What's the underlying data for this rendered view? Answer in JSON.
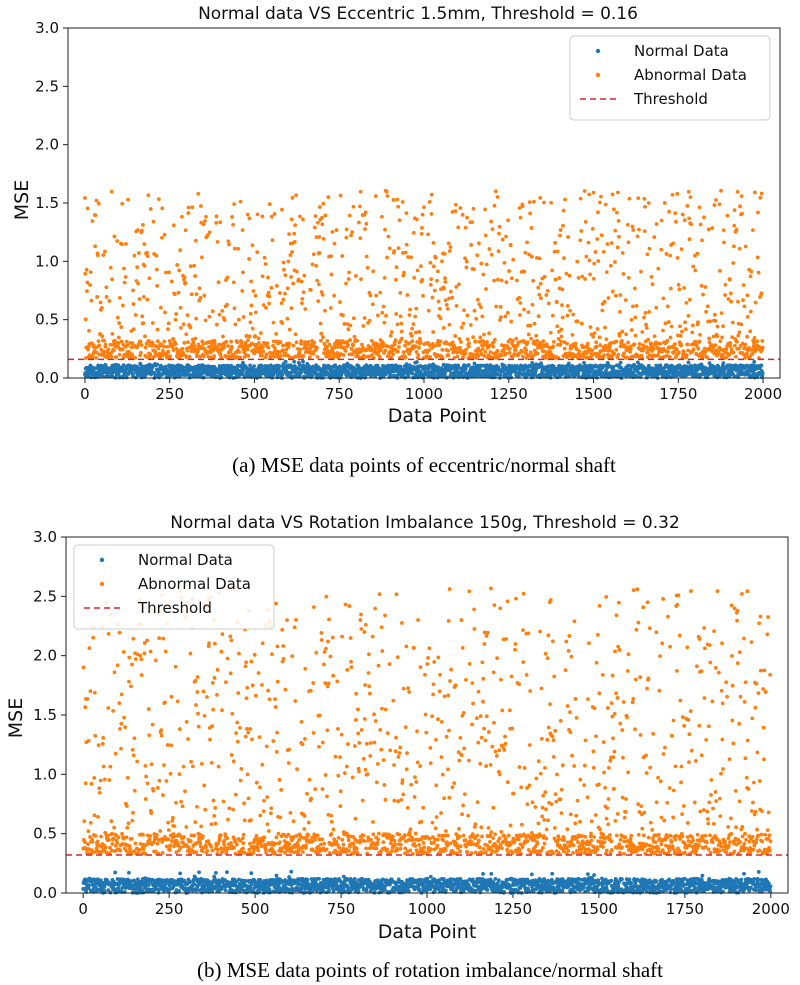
{
  "chart_data": [
    {
      "type": "scatter",
      "panel": "a",
      "title": "Normal data VS Eccentric 1.5mm, Threshold = 0.16",
      "xlabel": "Data Point",
      "ylabel": "MSE",
      "xlim": [
        -50,
        2050
      ],
      "ylim": [
        0,
        3.0
      ],
      "xticks": [
        0,
        250,
        500,
        750,
        1000,
        1250,
        1500,
        1750,
        2000
      ],
      "yticks": [
        0.0,
        0.5,
        1.0,
        1.5,
        2.0,
        2.5,
        3.0
      ],
      "ytick_labels": [
        "0.0",
        "0.5",
        "1.0",
        "1.5",
        "2.0",
        "2.5",
        "3.0"
      ],
      "threshold": 0.16,
      "legend_position": "top-right",
      "n_points": 2000,
      "series": [
        {
          "name": "Normal Data",
          "color": "#1f77b4",
          "range": [
            0.0,
            0.14
          ],
          "typical_max": 0.11
        },
        {
          "name": "Abnormal Data",
          "color": "#ff7f0e",
          "range": [
            0.17,
            1.61
          ],
          "dense_band": [
            0.17,
            0.32
          ]
        },
        {
          "name": "Threshold",
          "color": "#d62728",
          "style": "dashed",
          "value": 0.16
        }
      ],
      "caption": "(a) MSE data points of eccentric/normal shaft"
    },
    {
      "type": "scatter",
      "panel": "b",
      "title": "Normal data VS Rotation Imbalance 150g, Threshold = 0.32",
      "xlabel": "Data Point",
      "ylabel": "MSE",
      "xlim": [
        -50,
        2050
      ],
      "ylim": [
        0,
        3.0
      ],
      "xticks": [
        0,
        250,
        500,
        750,
        1000,
        1250,
        1500,
        1750,
        2000
      ],
      "yticks": [
        0.0,
        0.5,
        1.0,
        1.5,
        2.0,
        2.5,
        3.0
      ],
      "ytick_labels": [
        "0.0",
        "0.5",
        "1.0",
        "1.5",
        "2.0",
        "2.5",
        "3.0"
      ],
      "threshold": 0.32,
      "legend_position": "top-left",
      "n_points": 2000,
      "series": [
        {
          "name": "Normal Data",
          "color": "#1f77b4",
          "range": [
            0.0,
            0.18
          ],
          "typical_max": 0.12
        },
        {
          "name": "Abnormal Data",
          "color": "#ff7f0e",
          "range": [
            0.33,
            2.57
          ],
          "dense_band": [
            0.33,
            0.5
          ]
        },
        {
          "name": "Threshold",
          "color": "#d62728",
          "style": "dashed",
          "value": 0.32
        }
      ],
      "caption": "(b) MSE data points of rotation imbalance/normal shaft"
    }
  ]
}
